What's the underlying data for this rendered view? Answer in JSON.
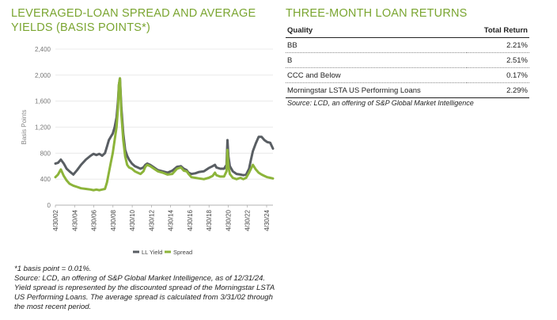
{
  "left_title": "LEVERAGED-LOAN SPREAD AND AVERAGE YIELDS (BASIS POINTS*)",
  "right_title": "THREE-MONTH LOAN RETURNS",
  "table": {
    "headers": [
      "Quality",
      "Total Return"
    ],
    "rows": [
      {
        "quality": "BB",
        "total_return": "2.21%"
      },
      {
        "quality": "B",
        "total_return": "2.51%"
      },
      {
        "quality": "CCC and Below",
        "total_return": "0.17%"
      },
      {
        "quality": "Morningstar LSTA US Performing Loans",
        "total_return": "2.29%"
      }
    ],
    "source": "Source: LCD, an offering of S&P Global Market Intelligence"
  },
  "footnote": {
    "line1": "*1 basis point = 0.01%.",
    "line2": "Source: LCD, an offering of S&P Global Market Intelligence, as of 12/31/24. Yield spread is represented by the discounted spread of the Morningstar LSTA US Performing Loans. The average spread is calculated from 3/31/02 through the most recent period."
  },
  "colors": {
    "title_green": "#7aa530",
    "yield_series": "#595e63",
    "spread_series": "#8cb43a",
    "axis": "#999999",
    "grid": "#e6e6e6"
  },
  "chart_data": {
    "type": "line",
    "ylabel": "Basis Points",
    "ylim": [
      0,
      2400
    ],
    "yticks": [
      0,
      400,
      800,
      1200,
      1600,
      2000,
      2400
    ],
    "ytick_labels": [
      "0",
      "400",
      "800",
      "1,200",
      "1,600",
      "2,000",
      "2,400"
    ],
    "xlim": [
      2002.33,
      2024.99
    ],
    "xticks": [
      2002.33,
      2004.33,
      2006.33,
      2008.33,
      2010.33,
      2012.33,
      2014.33,
      2016.33,
      2018.33,
      2020.33,
      2022.33,
      2024.33
    ],
    "xtick_labels": [
      "4/30/02",
      "4/30/04",
      "4/30/06",
      "4/30/08",
      "4/30/10",
      "4/30/12",
      "4/30/14",
      "4/30/16",
      "4/30/18",
      "4/30/20",
      "4/30/22",
      "4/30/24"
    ],
    "legend_position": "bottom",
    "series": [
      {
        "name": "LL Yield",
        "x": [
          2002.33,
          2002.6,
          2002.9,
          2003.2,
          2003.5,
          2003.8,
          2004.2,
          2004.6,
          2005.0,
          2005.5,
          2006.0,
          2006.3,
          2006.6,
          2006.9,
          2007.2,
          2007.5,
          2007.7,
          2007.9,
          2008.1,
          2008.3,
          2008.5,
          2008.7,
          2008.85,
          2008.95,
          2009.05,
          2009.2,
          2009.4,
          2009.6,
          2009.8,
          2010.0,
          2010.3,
          2010.6,
          2010.9,
          2011.2,
          2011.5,
          2011.7,
          2011.9,
          2012.2,
          2012.6,
          2013.0,
          2013.5,
          2014.0,
          2014.5,
          2015.0,
          2015.4,
          2015.7,
          2016.0,
          2016.2,
          2016.5,
          2016.9,
          2017.3,
          2017.8,
          2018.3,
          2018.7,
          2018.95,
          2019.1,
          2019.5,
          2019.9,
          2020.15,
          2020.25,
          2020.35,
          2020.5,
          2020.8,
          2021.2,
          2021.6,
          2021.9,
          2022.2,
          2022.5,
          2022.7,
          2022.9,
          2023.2,
          2023.5,
          2023.8,
          2024.1,
          2024.4,
          2024.7,
          2024.99
        ],
        "values": [
          640,
          650,
          700,
          640,
          560,
          520,
          470,
          540,
          620,
          700,
          760,
          790,
          770,
          790,
          760,
          800,
          900,
          1000,
          1050,
          1100,
          1200,
          1350,
          1600,
          1850,
          1950,
          1500,
          1100,
          850,
          760,
          700,
          640,
          600,
          580,
          560,
          580,
          620,
          640,
          620,
          580,
          540,
          520,
          500,
          530,
          590,
          600,
          560,
          540,
          500,
          480,
          490,
          510,
          520,
          570,
          600,
          620,
          580,
          560,
          560,
          620,
          1000,
          750,
          600,
          520,
          480,
          470,
          460,
          470,
          560,
          700,
          830,
          950,
          1050,
          1050,
          1000,
          970,
          960,
          870
        ]
      },
      {
        "name": "Spread",
        "x": [
          2002.33,
          2002.6,
          2002.9,
          2003.2,
          2003.5,
          2003.8,
          2004.2,
          2004.6,
          2005.0,
          2005.5,
          2006.0,
          2006.3,
          2006.6,
          2006.9,
          2007.2,
          2007.5,
          2007.7,
          2007.9,
          2008.1,
          2008.3,
          2008.5,
          2008.7,
          2008.85,
          2008.95,
          2009.05,
          2009.2,
          2009.4,
          2009.6,
          2009.8,
          2010.0,
          2010.3,
          2010.6,
          2010.9,
          2011.2,
          2011.5,
          2011.7,
          2011.9,
          2012.2,
          2012.6,
          2013.0,
          2013.5,
          2014.0,
          2014.5,
          2015.0,
          2015.4,
          2015.7,
          2016.0,
          2016.2,
          2016.5,
          2016.9,
          2017.3,
          2017.8,
          2018.3,
          2018.7,
          2018.95,
          2019.1,
          2019.5,
          2019.9,
          2020.15,
          2020.25,
          2020.35,
          2020.5,
          2020.8,
          2021.2,
          2021.6,
          2021.9,
          2022.2,
          2022.5,
          2022.7,
          2022.9,
          2023.2,
          2023.5,
          2023.8,
          2024.1,
          2024.4,
          2024.7,
          2024.99
        ],
        "values": [
          430,
          470,
          550,
          450,
          380,
          330,
          300,
          280,
          260,
          250,
          240,
          230,
          240,
          230,
          240,
          250,
          350,
          500,
          650,
          800,
          1000,
          1200,
          1500,
          1850,
          1950,
          1400,
          1000,
          750,
          620,
          580,
          560,
          520,
          500,
          480,
          520,
          590,
          620,
          600,
          560,
          520,
          500,
          470,
          480,
          560,
          580,
          530,
          520,
          480,
          430,
          420,
          410,
          400,
          420,
          450,
          500,
          460,
          440,
          440,
          520,
          850,
          600,
          480,
          420,
          400,
          420,
          400,
          420,
          500,
          560,
          620,
          550,
          500,
          470,
          450,
          430,
          420,
          410
        ]
      }
    ]
  }
}
